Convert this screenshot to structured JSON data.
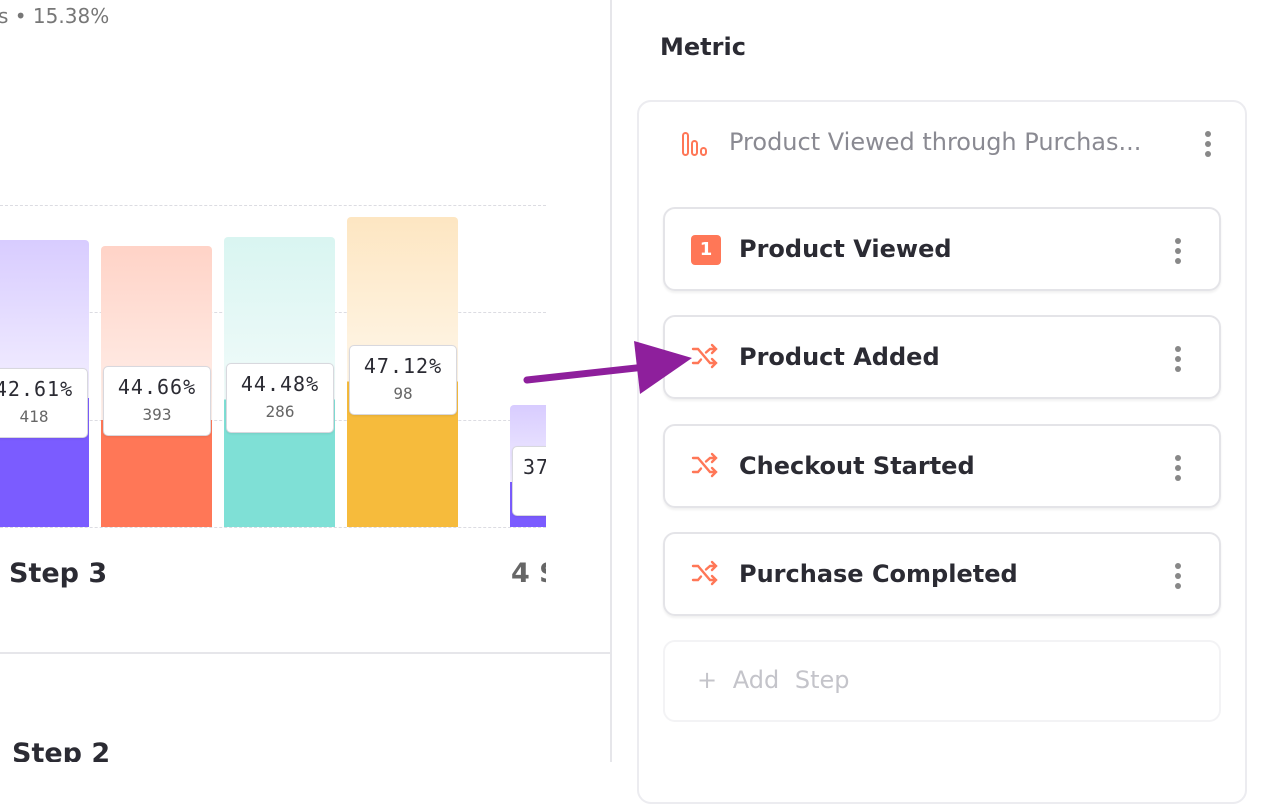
{
  "chart_panel": {
    "summary": "s • 15.38%",
    "bars": [
      {
        "percent": "42.61%",
        "count": "418"
      },
      {
        "percent": "44.66%",
        "count": "393"
      },
      {
        "percent": "44.48%",
        "count": "286"
      },
      {
        "percent": "47.12%",
        "count": "98"
      },
      {
        "percent": "37"
      }
    ],
    "step_labels": [
      "Step 3",
      "4 S"
    ],
    "section_title": "Step 2"
  },
  "metric_panel": {
    "title": "Metric",
    "funnel_name": "Product Viewed through Purchas...",
    "steps": [
      {
        "badge": "1",
        "label": "Product Viewed"
      },
      {
        "label": "Product Added"
      },
      {
        "label": "Checkout Started"
      },
      {
        "label": "Purchase Completed"
      }
    ],
    "add_step": "+ Add Step"
  }
}
